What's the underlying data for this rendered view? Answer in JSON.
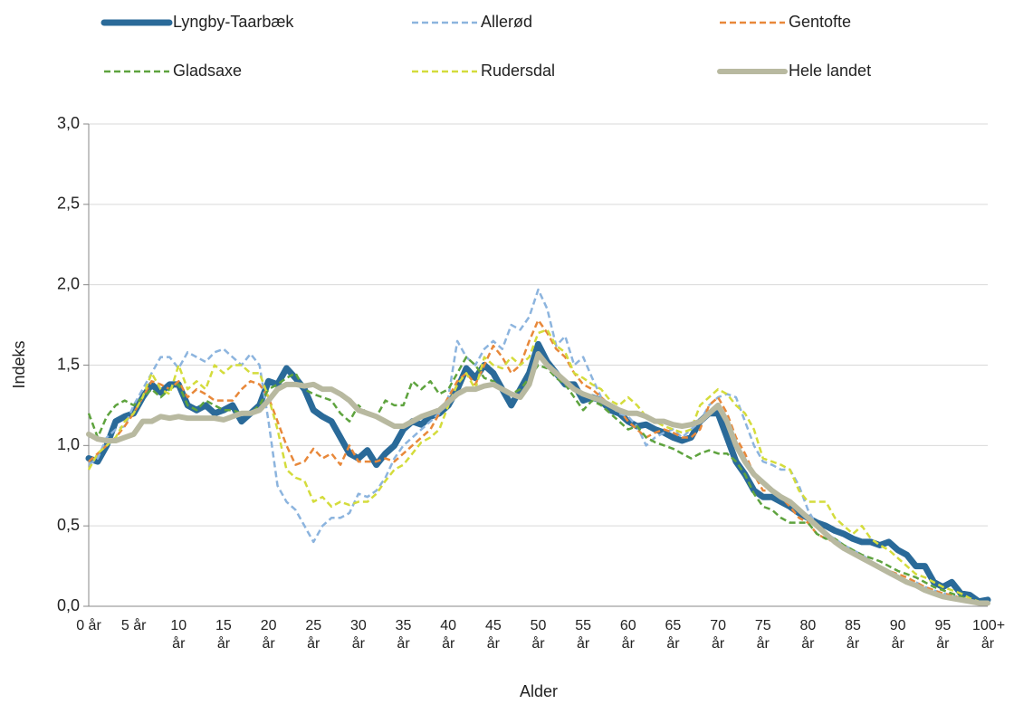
{
  "chart_data": {
    "type": "line",
    "x_label": "Alder",
    "y_label": "Indeks",
    "categories": [
      "0 år",
      null,
      null,
      null,
      null,
      "5 år",
      null,
      null,
      null,
      null,
      "10 år",
      null,
      null,
      null,
      null,
      "15 år",
      null,
      null,
      null,
      null,
      "20 år",
      null,
      null,
      null,
      null,
      "25 år",
      null,
      null,
      null,
      null,
      "30 år",
      null,
      null,
      null,
      null,
      "35 år",
      null,
      null,
      null,
      null,
      "40 år",
      null,
      null,
      null,
      null,
      "45 år",
      null,
      null,
      null,
      null,
      "50 år",
      null,
      null,
      null,
      null,
      "55 år",
      null,
      null,
      null,
      null,
      "60 år",
      null,
      null,
      null,
      null,
      "65 år",
      null,
      null,
      null,
      null,
      "70 år",
      null,
      null,
      null,
      null,
      "75 år",
      null,
      null,
      null,
      null,
      "80 år",
      null,
      null,
      null,
      null,
      "85 år",
      null,
      null,
      null,
      null,
      "90 år",
      null,
      null,
      null,
      null,
      "95 år",
      null,
      null,
      null,
      null,
      "100+ år"
    ],
    "ylim": [
      0,
      3
    ],
    "yticks": [
      {
        "value": 0,
        "label": "0,0"
      },
      {
        "value": 0.5,
        "label": "0,5"
      },
      {
        "value": 1,
        "label": "1,0"
      },
      {
        "value": 1.5,
        "label": "1,5"
      },
      {
        "value": 2,
        "label": "2,0"
      },
      {
        "value": 2.5,
        "label": "2,5"
      },
      {
        "value": 3,
        "label": "3,0"
      }
    ],
    "grid": true,
    "series": [
      {
        "name": "Lyngby-Taarbæk",
        "color": "#2a6a99",
        "line_width": 7,
        "dashed": false,
        "values": [
          0.92,
          0.9,
          1.0,
          1.15,
          1.18,
          1.2,
          1.3,
          1.38,
          1.33,
          1.38,
          1.38,
          1.25,
          1.22,
          1.25,
          1.2,
          1.22,
          1.25,
          1.15,
          1.2,
          1.25,
          1.4,
          1.38,
          1.48,
          1.42,
          1.35,
          1.22,
          1.18,
          1.15,
          1.05,
          0.95,
          0.92,
          0.97,
          0.88,
          0.95,
          1.0,
          1.1,
          1.15,
          1.13,
          1.18,
          1.2,
          1.25,
          1.35,
          1.48,
          1.42,
          1.5,
          1.45,
          1.35,
          1.25,
          1.35,
          1.45,
          1.63,
          1.52,
          1.45,
          1.38,
          1.38,
          1.28,
          1.3,
          1.28,
          1.22,
          1.2,
          1.15,
          1.12,
          1.13,
          1.1,
          1.08,
          1.05,
          1.03,
          1.05,
          1.15,
          1.2,
          1.2,
          1.05,
          0.9,
          0.82,
          0.72,
          0.68,
          0.68,
          0.65,
          0.62,
          0.58,
          0.55,
          0.52,
          0.5,
          0.47,
          0.45,
          0.42,
          0.4,
          0.4,
          0.38,
          0.4,
          0.35,
          0.32,
          0.25,
          0.25,
          0.15,
          0.12,
          0.15,
          0.08,
          0.07,
          0.03,
          0.04
        ]
      },
      {
        "name": "Allerød",
        "color": "#8cb4de",
        "line_width": 2.5,
        "dashed": true,
        "values": [
          0.88,
          0.92,
          1.05,
          1.1,
          1.12,
          1.25,
          1.35,
          1.45,
          1.55,
          1.55,
          1.48,
          1.58,
          1.55,
          1.52,
          1.58,
          1.6,
          1.55,
          1.5,
          1.57,
          1.5,
          1.15,
          0.75,
          0.65,
          0.6,
          0.5,
          0.4,
          0.5,
          0.55,
          0.55,
          0.58,
          0.7,
          0.68,
          0.72,
          0.8,
          0.92,
          1.0,
          1.05,
          1.1,
          1.15,
          1.2,
          1.3,
          1.65,
          1.55,
          1.5,
          1.6,
          1.65,
          1.6,
          1.75,
          1.72,
          1.8,
          1.97,
          1.85,
          1.62,
          1.68,
          1.5,
          1.55,
          1.42,
          1.3,
          1.25,
          1.2,
          1.18,
          1.12,
          1.0,
          1.05,
          1.08,
          1.1,
          1.05,
          1.1,
          1.15,
          1.25,
          1.3,
          1.32,
          1.3,
          1.15,
          1.0,
          0.9,
          0.88,
          0.85,
          0.85,
          0.75,
          0.6,
          0.5,
          0.45,
          0.42,
          0.38,
          0.35,
          0.32,
          0.28,
          0.25,
          0.22,
          0.18,
          0.15,
          0.15,
          0.12,
          0.1,
          0.08,
          0.07,
          0.05,
          0.03,
          0.02,
          0.02
        ]
      },
      {
        "name": "Gentofte",
        "color": "#e8883a",
        "line_width": 2.5,
        "dashed": true,
        "values": [
          0.9,
          0.95,
          1.0,
          1.05,
          1.12,
          1.2,
          1.3,
          1.4,
          1.38,
          1.35,
          1.4,
          1.3,
          1.35,
          1.32,
          1.28,
          1.28,
          1.28,
          1.35,
          1.4,
          1.38,
          1.3,
          1.15,
          1.0,
          0.88,
          0.9,
          0.98,
          0.92,
          0.95,
          0.88,
          1.0,
          0.9,
          0.9,
          0.9,
          0.92,
          0.9,
          0.95,
          1.0,
          1.05,
          1.1,
          1.2,
          1.3,
          1.4,
          1.45,
          1.38,
          1.5,
          1.62,
          1.55,
          1.45,
          1.5,
          1.65,
          1.78,
          1.7,
          1.6,
          1.55,
          1.45,
          1.38,
          1.35,
          1.3,
          1.25,
          1.22,
          1.15,
          1.1,
          1.05,
          1.08,
          1.1,
          1.08,
          1.05,
          1.05,
          1.1,
          1.25,
          1.3,
          1.2,
          1.05,
          0.95,
          0.82,
          0.72,
          0.72,
          0.68,
          0.62,
          0.55,
          0.52,
          0.45,
          0.42,
          0.4,
          0.37,
          0.33,
          0.3,
          0.27,
          0.25,
          0.22,
          0.2,
          0.18,
          0.15,
          0.12,
          0.1,
          0.08,
          0.07,
          0.05,
          0.04,
          0.03,
          0.02
        ]
      },
      {
        "name": "Gladsaxe",
        "color": "#5ea33e",
        "line_width": 2.5,
        "dashed": true,
        "values": [
          1.2,
          1.05,
          1.18,
          1.25,
          1.28,
          1.25,
          1.3,
          1.35,
          1.3,
          1.35,
          1.38,
          1.25,
          1.22,
          1.28,
          1.25,
          1.22,
          1.22,
          1.2,
          1.2,
          1.25,
          1.35,
          1.38,
          1.42,
          1.45,
          1.35,
          1.32,
          1.3,
          1.28,
          1.2,
          1.15,
          1.25,
          1.2,
          1.18,
          1.28,
          1.25,
          1.25,
          1.4,
          1.35,
          1.4,
          1.32,
          1.35,
          1.45,
          1.55,
          1.5,
          1.42,
          1.4,
          1.35,
          1.32,
          1.35,
          1.42,
          1.5,
          1.48,
          1.42,
          1.38,
          1.3,
          1.22,
          1.28,
          1.25,
          1.2,
          1.15,
          1.1,
          1.12,
          1.05,
          1.02,
          1.0,
          0.98,
          0.95,
          0.92,
          0.95,
          0.97,
          0.95,
          0.95,
          0.9,
          0.82,
          0.7,
          0.62,
          0.6,
          0.55,
          0.52,
          0.52,
          0.52,
          0.45,
          0.42,
          0.42,
          0.38,
          0.35,
          0.32,
          0.3,
          0.28,
          0.25,
          0.22,
          0.2,
          0.18,
          0.15,
          0.12,
          0.1,
          0.08,
          0.06,
          0.04,
          0.03,
          0.02
        ]
      },
      {
        "name": "Rudersdal",
        "color": "#d4dc3c",
        "line_width": 2.5,
        "dashed": true,
        "values": [
          0.85,
          0.95,
          1.0,
          1.05,
          1.15,
          1.2,
          1.3,
          1.45,
          1.35,
          1.32,
          1.5,
          1.35,
          1.4,
          1.35,
          1.5,
          1.45,
          1.5,
          1.5,
          1.45,
          1.45,
          1.3,
          1.1,
          0.85,
          0.8,
          0.78,
          0.65,
          0.68,
          0.62,
          0.65,
          0.63,
          0.65,
          0.65,
          0.7,
          0.78,
          0.85,
          0.88,
          0.95,
          1.02,
          1.05,
          1.1,
          1.25,
          1.38,
          1.45,
          1.35,
          1.55,
          1.5,
          1.48,
          1.55,
          1.5,
          1.55,
          1.7,
          1.72,
          1.62,
          1.58,
          1.45,
          1.42,
          1.38,
          1.35,
          1.28,
          1.25,
          1.3,
          1.25,
          1.18,
          1.15,
          1.12,
          1.1,
          1.08,
          1.1,
          1.25,
          1.3,
          1.35,
          1.32,
          1.25,
          1.2,
          1.1,
          0.92,
          0.9,
          0.88,
          0.85,
          0.72,
          0.65,
          0.65,
          0.65,
          0.55,
          0.5,
          0.45,
          0.5,
          0.42,
          0.38,
          0.35,
          0.3,
          0.25,
          0.2,
          0.18,
          0.15,
          0.12,
          0.1,
          0.08,
          0.05,
          0.03,
          0.02
        ]
      },
      {
        "name": "Hele landet",
        "color": "#b8b9a0",
        "line_width": 6,
        "dashed": false,
        "values": [
          1.07,
          1.04,
          1.03,
          1.03,
          1.05,
          1.07,
          1.15,
          1.15,
          1.18,
          1.17,
          1.18,
          1.17,
          1.17,
          1.17,
          1.17,
          1.16,
          1.18,
          1.2,
          1.2,
          1.22,
          1.28,
          1.35,
          1.38,
          1.38,
          1.37,
          1.38,
          1.35,
          1.35,
          1.32,
          1.28,
          1.22,
          1.2,
          1.18,
          1.15,
          1.12,
          1.12,
          1.15,
          1.18,
          1.2,
          1.22,
          1.27,
          1.32,
          1.35,
          1.35,
          1.37,
          1.38,
          1.35,
          1.32,
          1.3,
          1.38,
          1.57,
          1.5,
          1.45,
          1.4,
          1.35,
          1.32,
          1.3,
          1.28,
          1.25,
          1.22,
          1.2,
          1.2,
          1.18,
          1.15,
          1.15,
          1.13,
          1.12,
          1.13,
          1.15,
          1.2,
          1.25,
          1.15,
          1.0,
          0.9,
          0.82,
          0.77,
          0.72,
          0.68,
          0.65,
          0.6,
          0.55,
          0.5,
          0.45,
          0.4,
          0.36,
          0.33,
          0.3,
          0.27,
          0.24,
          0.21,
          0.18,
          0.15,
          0.13,
          0.1,
          0.08,
          0.06,
          0.05,
          0.04,
          0.03,
          0.02,
          0.02
        ]
      }
    ]
  }
}
